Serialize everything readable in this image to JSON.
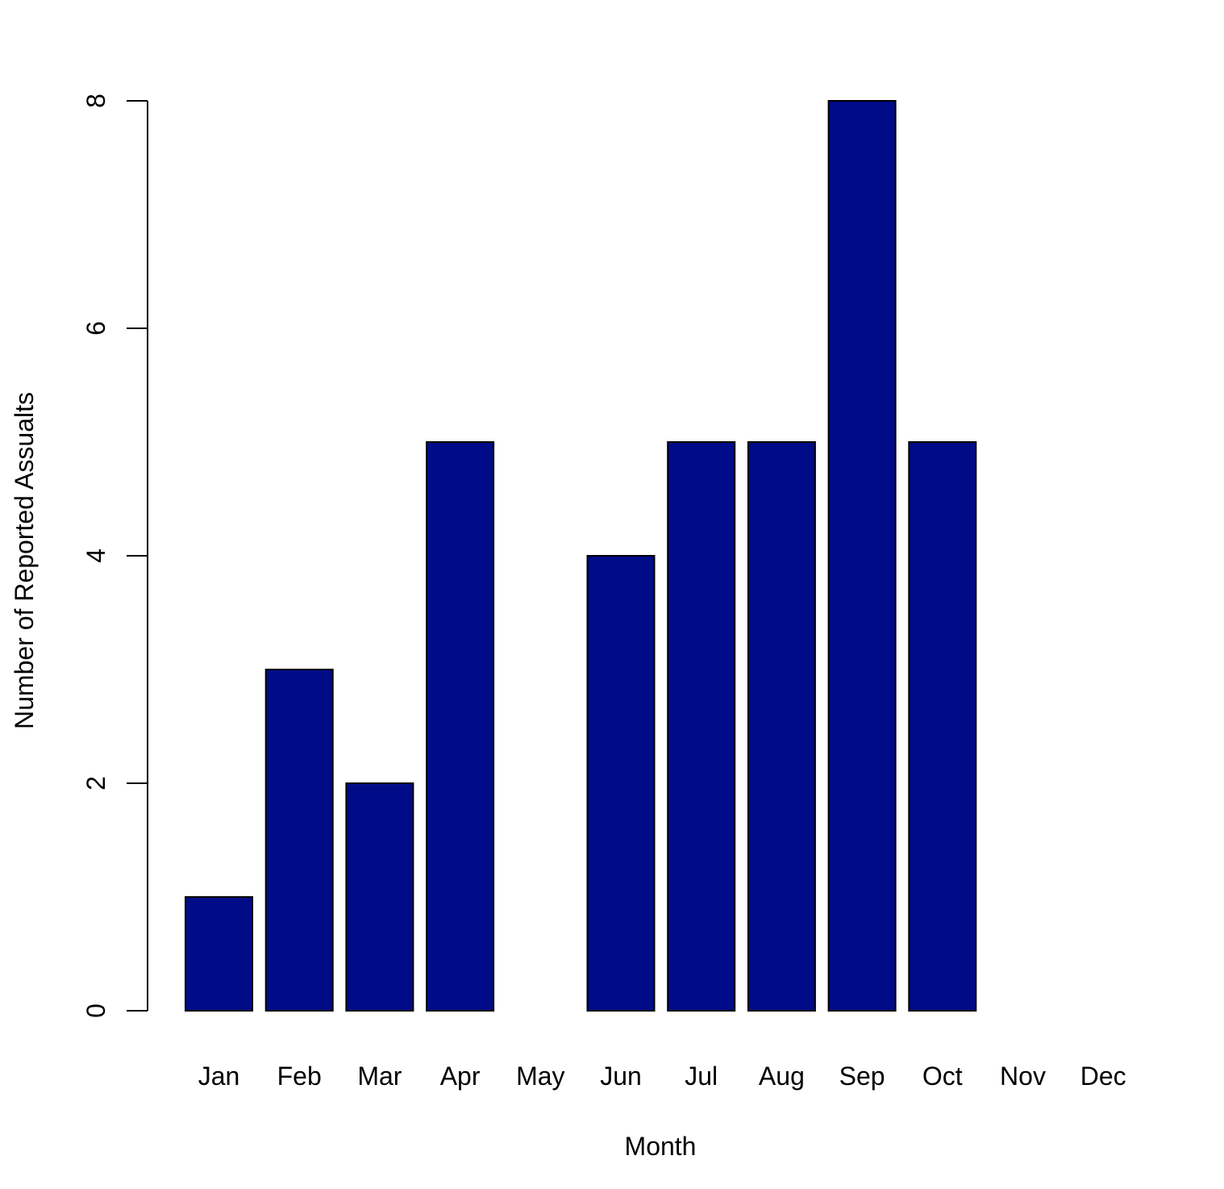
{
  "chart_data": {
    "type": "bar",
    "title": "",
    "xlabel": "Month",
    "ylabel": "Number of Reported Assualts",
    "categories": [
      "Jan",
      "Feb",
      "Mar",
      "Apr",
      "May",
      "Jun",
      "Jul",
      "Aug",
      "Sep",
      "Oct",
      "Nov",
      "Dec"
    ],
    "values": [
      1,
      3,
      2,
      5,
      0,
      4,
      5,
      5,
      8,
      5,
      0,
      0
    ],
    "ylim": [
      0,
      8
    ],
    "yticks": [
      0,
      2,
      4,
      6,
      8
    ],
    "grid": false,
    "legend": "none",
    "bar_color": "#000b88",
    "bar_edge_color": "#000000"
  }
}
